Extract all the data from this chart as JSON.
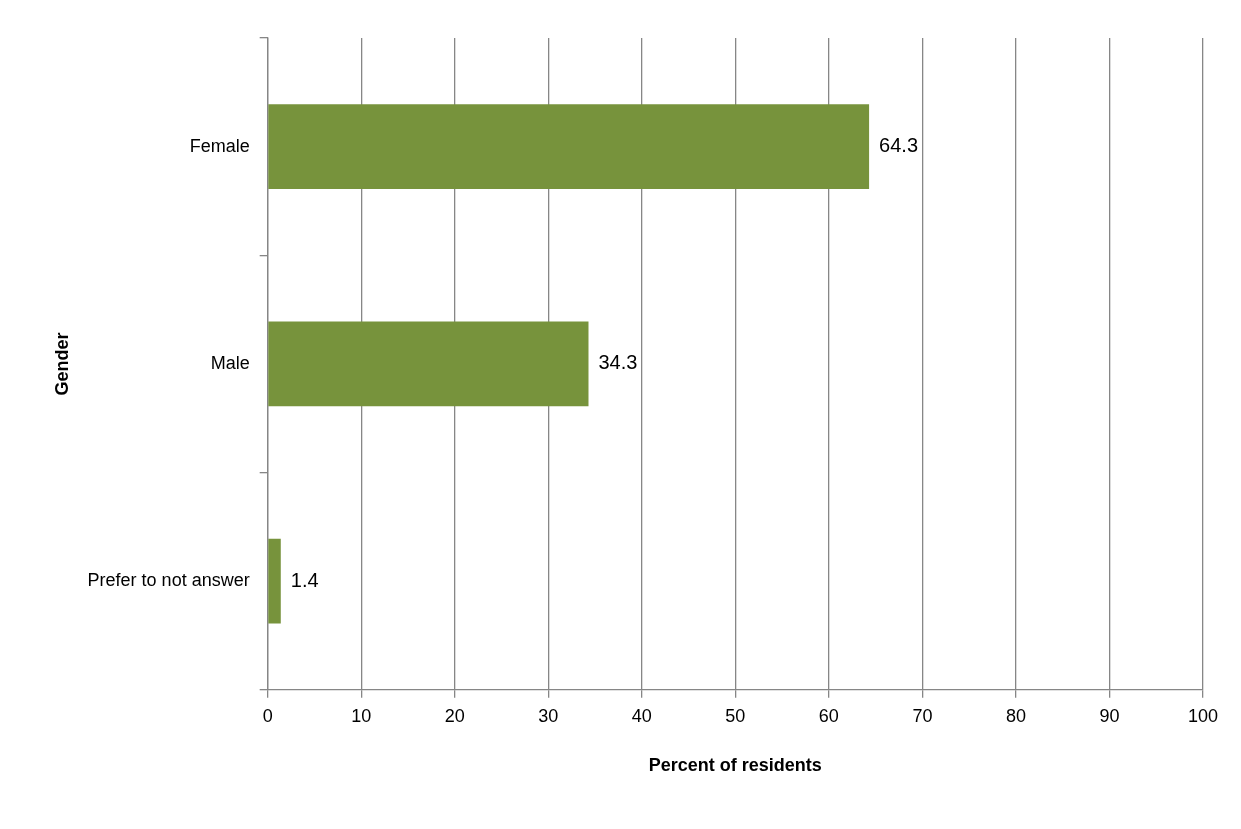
{
  "chart_data": {
    "type": "bar",
    "orientation": "horizontal",
    "xlabel": "Percent of residents",
    "ylabel": "Gender",
    "categories": [
      "Female",
      "Male",
      "Prefer to not answer"
    ],
    "values": [
      64.3,
      34.3,
      1.4
    ],
    "color": "#77933c",
    "xlim": [
      0,
      100
    ],
    "xticks": [
      0,
      10,
      20,
      30,
      40,
      50,
      60,
      70,
      80,
      90,
      100
    ],
    "grid": "x",
    "legend": false,
    "data_labels": true
  }
}
